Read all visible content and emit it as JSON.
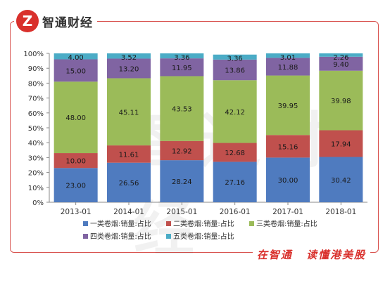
{
  "brand": {
    "name": "智通财经",
    "logo_text": "Z",
    "logo_color": "#d9302c"
  },
  "slogan": {
    "left": "在智通",
    "right": "读懂港美股"
  },
  "watermark": "智通财经",
  "chart_data": {
    "type": "bar",
    "stacked": true,
    "categories": [
      "2013-01",
      "2014-01",
      "2015-01",
      "2016-01",
      "2017-01",
      "2018-01"
    ],
    "series": [
      {
        "name": "一类卷烟:销量:占比",
        "color": "#4f7bbf",
        "values": [
          23.0,
          26.56,
          28.24,
          27.16,
          30.0,
          30.42
        ]
      },
      {
        "name": "二类卷烟:销量:占比",
        "color": "#c0504d",
        "values": [
          10.0,
          11.61,
          12.92,
          12.68,
          15.16,
          17.94
        ]
      },
      {
        "name": "三类卷烟:销量:占比",
        "color": "#9bbb59",
        "values": [
          48.0,
          45.11,
          43.53,
          42.12,
          39.95,
          39.98
        ]
      },
      {
        "name": "四类卷烟:销量:占比",
        "color": "#8064a2",
        "values": [
          15.0,
          13.2,
          11.95,
          13.86,
          11.88,
          9.4
        ]
      },
      {
        "name": "五类卷烟:销量:占比",
        "color": "#4bacc6",
        "values": [
          4.0,
          3.52,
          3.36,
          3.36,
          3.01,
          2.26
        ]
      }
    ],
    "yticks": [
      "0%",
      "10%",
      "20%",
      "30%",
      "40%",
      "50%",
      "60%",
      "70%",
      "80%",
      "90%",
      "100%"
    ],
    "ylim": [
      0,
      100
    ],
    "legend_position": "bottom",
    "grid": false
  }
}
